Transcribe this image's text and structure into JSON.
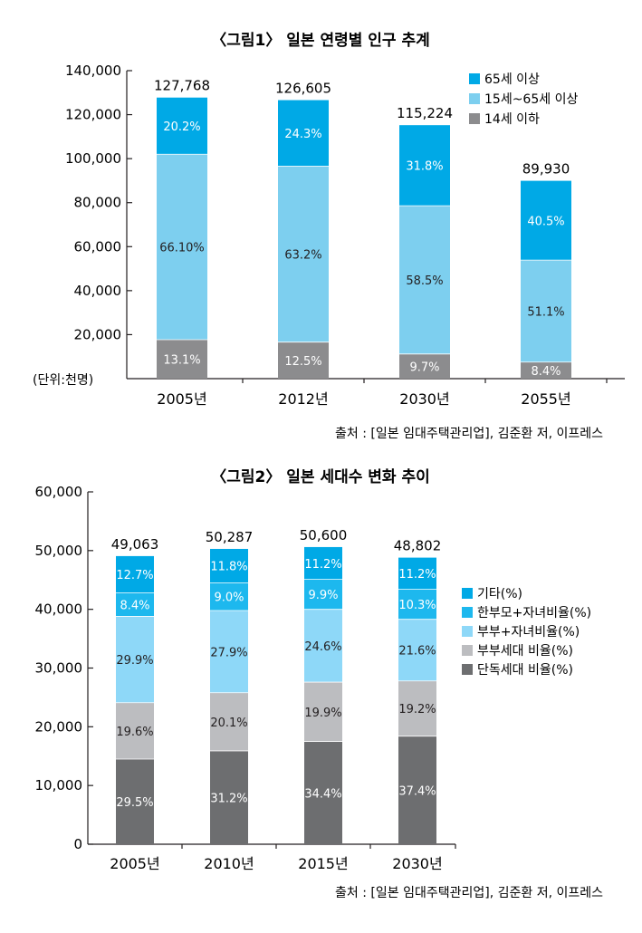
{
  "chart_data": [
    {
      "type": "bar",
      "stacked": true,
      "title": "〈그림1〉 일본 연령별 인구 추계",
      "unit_label": "(단위:천명)",
      "source": "출처 : [일본 임대주택관리업], 김준환 저, 이프레스",
      "ylim": [
        0,
        140000
      ],
      "yticks": [
        "140,000",
        "120,000",
        "100,000",
        "80,000",
        "60,000",
        "40,000",
        "20,000"
      ],
      "ytick_values": [
        140000,
        120000,
        100000,
        80000,
        60000,
        40000,
        20000
      ],
      "categories": [
        "2005년",
        "2012년",
        "2030년",
        "2055년"
      ],
      "totals": [
        127768,
        126605,
        115224,
        89930
      ],
      "total_labels": [
        "127,768",
        "126,605",
        "115,224",
        "89,930"
      ],
      "legend_position": "top-right",
      "series": [
        {
          "name": "14세 이하",
          "color": "#8c8c8e",
          "label_color": "#ffffff",
          "labels": [
            "13.1%",
            "12.5%",
            "9.7%",
            "8.4%"
          ],
          "values": [
            17700,
            16600,
            11200,
            7500
          ]
        },
        {
          "name": "15세~65세 이상",
          "color": "#7dcfef",
          "label_color": "#231f20",
          "labels": [
            "66.10%",
            "63.2%",
            "58.5%",
            "51.1%"
          ],
          "values": [
            84300,
            80000,
            67400,
            46400
          ]
        },
        {
          "name": "65세 이상",
          "color": "#00a9e6",
          "label_color": "#ffffff",
          "labels": [
            "20.2%",
            "24.3%",
            "31.8%",
            "40.5%"
          ],
          "values": [
            25768,
            30005,
            36624,
            36030
          ]
        }
      ]
    },
    {
      "type": "bar",
      "stacked": true,
      "title": "〈그림2〉 일본 세대수 변화 추이",
      "source": "출처 : [일본 임대주택관리업], 김준환 저, 이프레스",
      "ylim": [
        0,
        60000
      ],
      "yticks": [
        "60,000",
        "50,000",
        "40,000",
        "30,000",
        "20,000",
        "10,000",
        "0"
      ],
      "ytick_values": [
        60000,
        50000,
        40000,
        30000,
        20000,
        10000,
        0
      ],
      "categories": [
        "2005년",
        "2010년",
        "2015년",
        "2030년"
      ],
      "totals": [
        49063,
        50287,
        50600,
        48802
      ],
      "total_labels": [
        "49,063",
        "50,287",
        "50,600",
        "48,802"
      ],
      "legend_position": "right",
      "series": [
        {
          "name": "단독세대 비율(%)",
          "color": "#6d6e70",
          "label_color": "#ffffff",
          "labels": [
            "29.5%",
            "31.2%",
            "34.4%",
            "37.4%"
          ],
          "values": [
            14500,
            15900,
            17500,
            18400
          ]
        },
        {
          "name": "부부세대 비율(%)",
          "color": "#bcbdc0",
          "label_color": "#231f20",
          "labels": [
            "19.6%",
            "20.1%",
            "19.9%",
            "19.2%"
          ],
          "values": [
            9600,
            9900,
            10100,
            9400
          ]
        },
        {
          "name": "부부+자녀비율(%)",
          "color": "#8ed8f8",
          "label_color": "#231f20",
          "labels": [
            "29.9%",
            "27.9%",
            "24.6%",
            "21.6%"
          ],
          "values": [
            14700,
            14000,
            12400,
            10500
          ]
        },
        {
          "name": "한부모+자녀비율(%)",
          "color": "#1db8ee",
          "label_color": "#ffffff",
          "labels": [
            "8.4%",
            "9.0%",
            "9.9%",
            "10.3%"
          ],
          "values": [
            4000,
            4700,
            5100,
            5100
          ]
        },
        {
          "name": "기타(%)",
          "color": "#00a9e6",
          "label_color": "#ffffff",
          "labels": [
            "12.7%",
            "11.8%",
            "11.2%",
            "11.2%"
          ],
          "values": [
            6263,
            5787,
            5500,
            5402
          ]
        }
      ]
    }
  ]
}
